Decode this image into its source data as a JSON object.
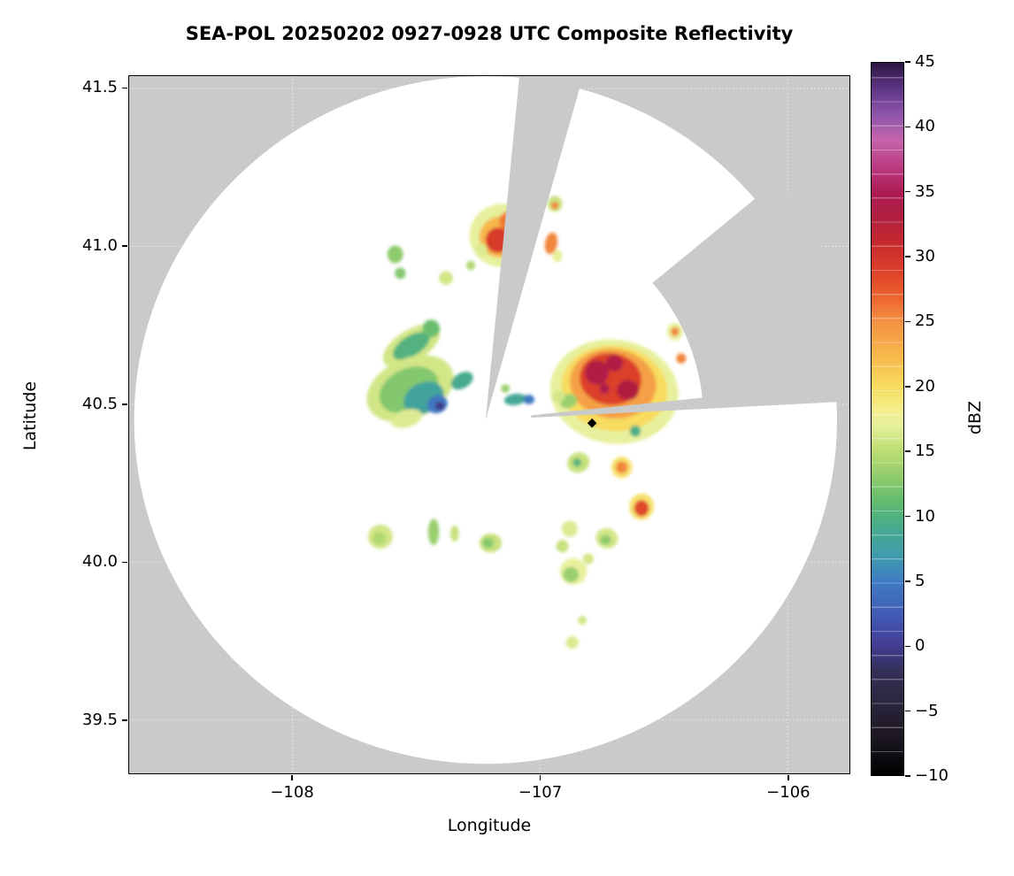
{
  "chart_data": {
    "type": "heatmap",
    "title": "SEA-POL 20250202 0927-0928 UTC Composite Reflectivity",
    "xlabel": "Longitude",
    "ylabel": "Latitude",
    "xlim": [
      -108.66,
      -105.75
    ],
    "ylim": [
      39.33,
      41.54
    ],
    "background_color": "#cacaca",
    "grid": {
      "color": "#ffffff",
      "style": "dotted"
    },
    "x_axis": {
      "label": "Longitude",
      "ticks": [
        {
          "v": -108,
          "label": "−108"
        },
        {
          "v": -107,
          "label": "−107"
        },
        {
          "v": -106,
          "label": "−106"
        }
      ]
    },
    "y_axis": {
      "label": "Latitude",
      "ticks": [
        {
          "v": 39.5,
          "label": "39.5"
        },
        {
          "v": 40.0,
          "label": "40.0"
        },
        {
          "v": 40.5,
          "label": "40.5"
        },
        {
          "v": 41.0,
          "label": "41.0"
        },
        {
          "v": 41.5,
          "label": "41.5"
        }
      ]
    },
    "colorbar": {
      "label": "dBZ",
      "min": -10,
      "max": 45,
      "ticks": [
        {
          "v": 45,
          "label": "45"
        },
        {
          "v": 40,
          "label": "40"
        },
        {
          "v": 35,
          "label": "35"
        },
        {
          "v": 30,
          "label": "30"
        },
        {
          "v": 25,
          "label": "25"
        },
        {
          "v": 20,
          "label": "20"
        },
        {
          "v": 15,
          "label": "15"
        },
        {
          "v": 10,
          "label": "10"
        },
        {
          "v": 5,
          "label": "5"
        },
        {
          "v": 0,
          "label": "0"
        },
        {
          "v": -5,
          "label": "−5"
        },
        {
          "v": -10,
          "label": "−10"
        }
      ],
      "stops": [
        {
          "v": -10,
          "c": "#000000"
        },
        {
          "v": -7,
          "c": "#1c1722"
        },
        {
          "v": -4,
          "c": "#2e2742"
        },
        {
          "v": -2,
          "c": "#343058"
        },
        {
          "v": 0,
          "c": "#433c92"
        },
        {
          "v": 2,
          "c": "#4156b2"
        },
        {
          "v": 5,
          "c": "#3f7cc3"
        },
        {
          "v": 7,
          "c": "#3f9cab"
        },
        {
          "v": 9,
          "c": "#47aa8e"
        },
        {
          "v": 11,
          "c": "#5fb96f"
        },
        {
          "v": 13,
          "c": "#8fcb6d"
        },
        {
          "v": 15,
          "c": "#bcdc72"
        },
        {
          "v": 17,
          "c": "#e7f09c"
        },
        {
          "v": 18,
          "c": "#f4ef90"
        },
        {
          "v": 20,
          "c": "#f7dc61"
        },
        {
          "v": 22,
          "c": "#f8bc4e"
        },
        {
          "v": 25,
          "c": "#f39243"
        },
        {
          "v": 27,
          "c": "#eb612f"
        },
        {
          "v": 29,
          "c": "#dc3f29"
        },
        {
          "v": 31,
          "c": "#c62a2e"
        },
        {
          "v": 33,
          "c": "#b01f3e"
        },
        {
          "v": 35,
          "c": "#ac1c55"
        },
        {
          "v": 37,
          "c": "#bb3b82"
        },
        {
          "v": 39,
          "c": "#c564ab"
        },
        {
          "v": 41,
          "c": "#8e55ab"
        },
        {
          "v": 43,
          "c": "#5e3585"
        },
        {
          "v": 45,
          "c": "#2c1540"
        }
      ]
    },
    "scan_area": {
      "center_lon": -107.22,
      "center_lat": 40.45,
      "radius_lon_deg": 1.42,
      "radius_lat_deg": 1.09,
      "fill": "#ffffff",
      "missing_sectors": [
        {
          "from_deg": 5.5,
          "to_deg": 15.5,
          "inner_f": 0
        },
        {
          "from_deg": 50,
          "to_deg": 87,
          "inner_f": 0.62,
          "finger_from_deg": 84,
          "finger_inner_f": 0.13
        }
      ]
    },
    "site_marker": {
      "lon": -106.79,
      "lat": 40.44,
      "shape": "diamond",
      "color": "#000000"
    },
    "echo_fields": [
      "lon",
      "lat",
      "rx_deg_lon",
      "ry_deg_lat",
      "rotation_deg",
      "dbz"
    ],
    "echoes": [
      [
        -107.155,
        41.035,
        0.13,
        0.1,
        -15,
        17.0
      ],
      [
        -107.16,
        41.03,
        0.085,
        0.065,
        -15,
        22.5
      ],
      [
        -107.17,
        41.02,
        0.05,
        0.04,
        0,
        29.5
      ],
      [
        -107.13,
        41.08,
        0.035,
        0.03,
        0,
        26.0
      ],
      [
        -106.94,
        41.135,
        0.03,
        0.025,
        0,
        15.5
      ],
      [
        -106.94,
        41.13,
        0.015,
        0.012,
        0,
        25.5
      ],
      [
        -106.955,
        41.01,
        0.025,
        0.035,
        10,
        25.5
      ],
      [
        -106.93,
        40.97,
        0.02,
        0.02,
        0,
        17.0
      ],
      [
        -107.24,
        40.99,
        0.025,
        0.02,
        0,
        16.5
      ],
      [
        -107.28,
        40.94,
        0.018,
        0.015,
        0,
        14.5
      ],
      [
        -107.585,
        40.975,
        0.032,
        0.028,
        0,
        13.0
      ],
      [
        -107.565,
        40.915,
        0.022,
        0.018,
        0,
        12.5
      ],
      [
        -107.38,
        40.9,
        0.028,
        0.022,
        0,
        16.0
      ],
      [
        -107.52,
        40.685,
        0.13,
        0.05,
        -32,
        16.0
      ],
      [
        -107.52,
        40.685,
        0.085,
        0.032,
        -32,
        10.0
      ],
      [
        -107.44,
        40.74,
        0.035,
        0.028,
        0,
        11.5
      ],
      [
        -107.525,
        40.55,
        0.185,
        0.095,
        -25,
        16.0
      ],
      [
        -107.53,
        40.545,
        0.125,
        0.068,
        -25,
        12.5
      ],
      [
        -107.47,
        40.52,
        0.085,
        0.048,
        -25,
        8.0
      ],
      [
        -107.415,
        40.5,
        0.042,
        0.028,
        -25,
        4.5
      ],
      [
        -107.405,
        40.495,
        0.018,
        0.013,
        0,
        -0.5
      ],
      [
        -107.315,
        40.575,
        0.048,
        0.024,
        -30,
        9.0
      ],
      [
        -107.54,
        40.455,
        0.065,
        0.028,
        -15,
        16.5
      ],
      [
        -107.1,
        40.515,
        0.045,
        0.018,
        -8,
        8.5
      ],
      [
        -107.045,
        40.515,
        0.022,
        0.015,
        0,
        4.5
      ],
      [
        -107.14,
        40.55,
        0.018,
        0.013,
        0,
        13.5
      ],
      [
        -106.7,
        40.54,
        0.26,
        0.165,
        8,
        17.0
      ],
      [
        -106.7,
        40.55,
        0.215,
        0.135,
        8,
        20.0
      ],
      [
        -106.705,
        40.565,
        0.175,
        0.11,
        8,
        24.0
      ],
      [
        -106.715,
        40.58,
        0.125,
        0.082,
        8,
        29.0
      ],
      [
        -106.77,
        40.6,
        0.048,
        0.038,
        0,
        33.5
      ],
      [
        -106.645,
        40.545,
        0.045,
        0.032,
        0,
        33.0
      ],
      [
        -106.7,
        40.63,
        0.035,
        0.026,
        0,
        33.5
      ],
      [
        -106.74,
        40.55,
        0.02,
        0.016,
        0,
        34.5
      ],
      [
        -106.615,
        40.415,
        0.022,
        0.018,
        0,
        9.5
      ],
      [
        -106.885,
        40.51,
        0.035,
        0.022,
        -20,
        13.5
      ],
      [
        -106.925,
        40.525,
        0.028,
        0.018,
        -20,
        16.0
      ],
      [
        -106.455,
        40.73,
        0.032,
        0.028,
        0,
        17.0
      ],
      [
        -106.455,
        40.73,
        0.017,
        0.014,
        0,
        25.5
      ],
      [
        -106.43,
        40.645,
        0.02,
        0.016,
        0,
        25.5
      ],
      [
        -106.845,
        40.315,
        0.045,
        0.032,
        -20,
        15.5
      ],
      [
        -106.85,
        40.315,
        0.018,
        0.013,
        0,
        10.0
      ],
      [
        -106.67,
        40.3,
        0.042,
        0.034,
        0,
        19.5
      ],
      [
        -106.67,
        40.3,
        0.024,
        0.019,
        0,
        25.5
      ],
      [
        -106.59,
        40.175,
        0.05,
        0.042,
        10,
        19.5
      ],
      [
        -106.59,
        40.17,
        0.03,
        0.026,
        0,
        28.5
      ],
      [
        -106.73,
        40.075,
        0.045,
        0.032,
        15,
        16.0
      ],
      [
        -106.735,
        40.07,
        0.022,
        0.015,
        0,
        13.0
      ],
      [
        -106.865,
        39.97,
        0.055,
        0.042,
        0,
        17.0
      ],
      [
        -106.875,
        39.96,
        0.032,
        0.024,
        0,
        13.5
      ],
      [
        -106.805,
        40.01,
        0.022,
        0.017,
        0,
        16.0
      ],
      [
        -106.88,
        40.105,
        0.032,
        0.026,
        0,
        16.5
      ],
      [
        -106.91,
        40.05,
        0.025,
        0.02,
        0,
        15.5
      ],
      [
        -106.87,
        39.745,
        0.026,
        0.02,
        0,
        16.5
      ],
      [
        -106.83,
        39.815,
        0.018,
        0.014,
        0,
        16.0
      ],
      [
        -107.645,
        40.08,
        0.05,
        0.038,
        0,
        16.0
      ],
      [
        -107.65,
        40.075,
        0.028,
        0.02,
        0,
        14.5
      ],
      [
        -107.43,
        40.095,
        0.022,
        0.042,
        0,
        13.5
      ],
      [
        -107.345,
        40.09,
        0.017,
        0.026,
        0,
        15.5
      ],
      [
        -107.2,
        40.06,
        0.045,
        0.03,
        0,
        15.5
      ],
      [
        -107.21,
        40.06,
        0.022,
        0.016,
        0,
        12.5
      ]
    ]
  }
}
